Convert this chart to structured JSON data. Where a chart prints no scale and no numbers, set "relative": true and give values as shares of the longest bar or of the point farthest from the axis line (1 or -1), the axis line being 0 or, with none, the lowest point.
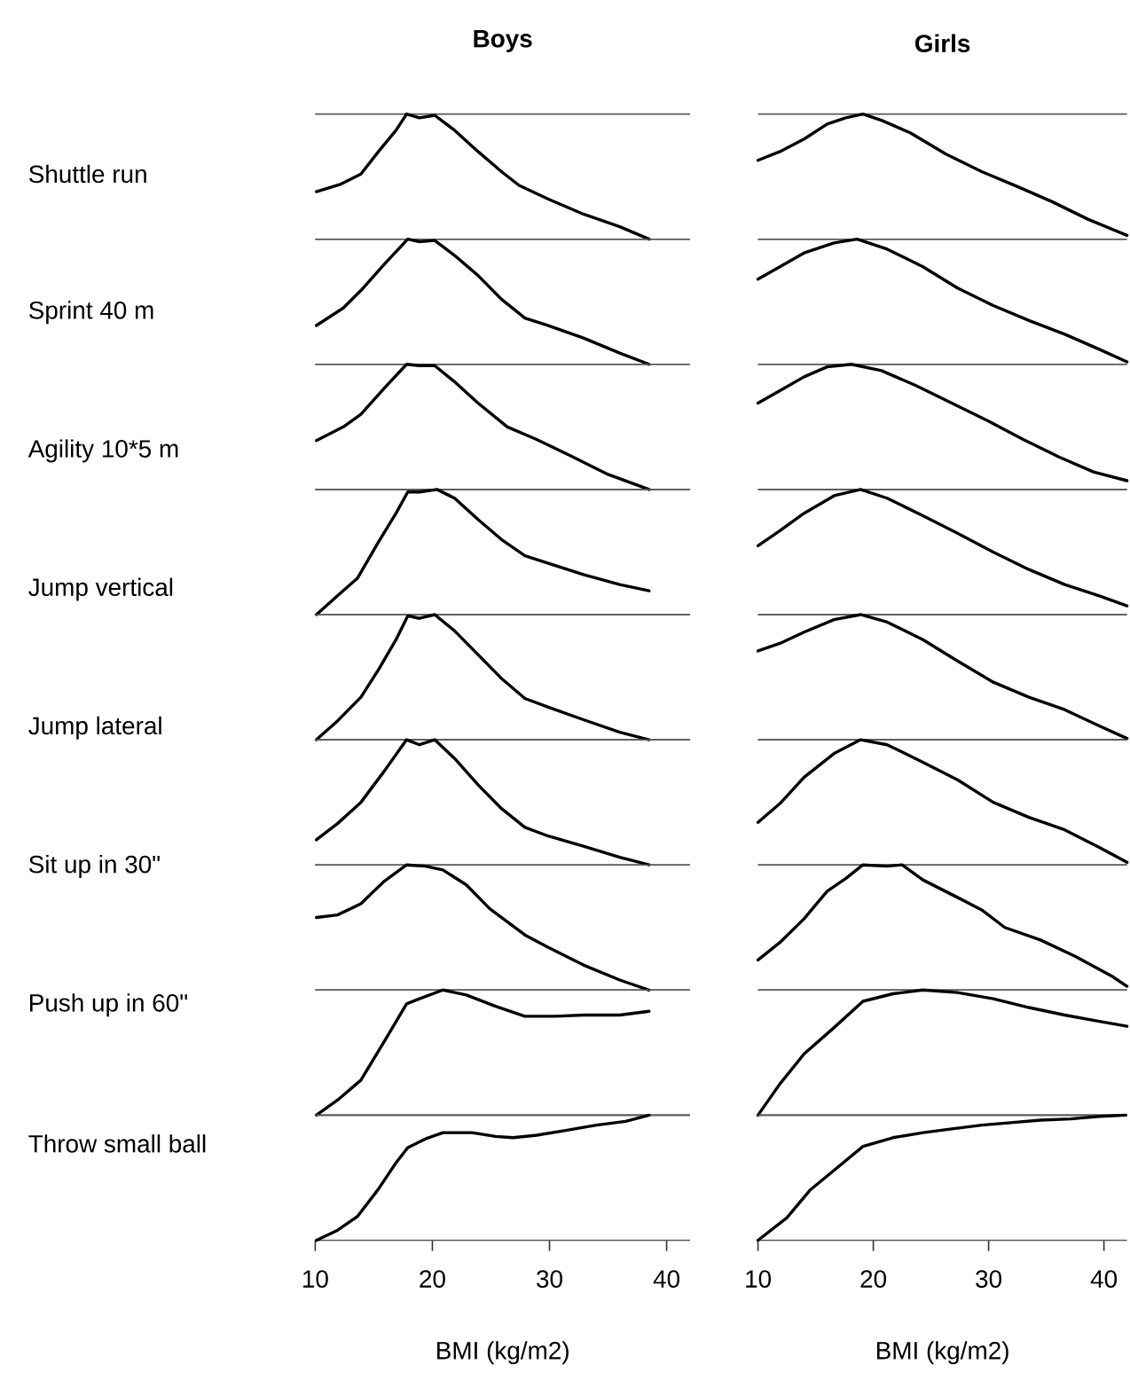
{
  "chart_data": [
    {
      "type": "line",
      "title": "Boys",
      "ylabel": "Shuttle run",
      "relative": true,
      "color": "#000000",
      "tick_labels": false,
      "xlim": [
        10,
        42
      ],
      "x": [
        10.1,
        12.2,
        13.9,
        15.4,
        16.9,
        17.8,
        18.9,
        20.2,
        21.9,
        23.9,
        25.9,
        27.4,
        29.9,
        32.9,
        36,
        38.5
      ],
      "values": [
        0.38,
        0.44,
        0.52,
        0.7,
        0.87,
        1.0,
        0.97,
        0.99,
        0.87,
        0.7,
        0.54,
        0.43,
        0.32,
        0.2,
        0.1,
        0.0
      ]
    },
    {
      "type": "line",
      "title": "Girls",
      "relative": true,
      "color": "#000000",
      "tick_labels": false,
      "xlim": [
        10,
        42
      ],
      "x": [
        10,
        11.9,
        14,
        16,
        17.6,
        19.1,
        20.7,
        23.2,
        26.3,
        29.4,
        32.5,
        35.5,
        38.6,
        42
      ],
      "values": [
        0.63,
        0.7,
        0.8,
        0.92,
        0.97,
        1.0,
        0.95,
        0.85,
        0.68,
        0.54,
        0.42,
        0.3,
        0.16,
        0.03
      ]
    },
    {
      "type": "line",
      "ylabel": "Sprint 40 m",
      "relative": true,
      "color": "#000000",
      "tick_labels": false,
      "xlim": [
        10,
        42
      ],
      "x": [
        10.1,
        12.4,
        13.9,
        15.9,
        17.9,
        18.9,
        20.2,
        21.9,
        23.9,
        25.9,
        27.9,
        29.9,
        32.9,
        36,
        38.5
      ],
      "values": [
        0.31,
        0.45,
        0.59,
        0.8,
        1.0,
        0.98,
        0.99,
        0.87,
        0.71,
        0.52,
        0.37,
        0.31,
        0.21,
        0.09,
        0.0
      ]
    },
    {
      "type": "line",
      "relative": true,
      "color": "#000000",
      "tick_labels": false,
      "xlim": [
        10,
        42
      ],
      "x": [
        10,
        11.9,
        14,
        16.6,
        18.6,
        21.2,
        24.3,
        27.3,
        30.4,
        33.5,
        36.6,
        39.6,
        42
      ],
      "values": [
        0.68,
        0.78,
        0.89,
        0.97,
        1.0,
        0.92,
        0.78,
        0.61,
        0.47,
        0.35,
        0.24,
        0.12,
        0.02
      ]
    },
    {
      "type": "line",
      "ylabel": "Agility 10*5 m",
      "relative": true,
      "color": "#000000",
      "tick_labels": false,
      "xlim": [
        10,
        42
      ],
      "x": [
        10.1,
        12.4,
        13.9,
        15.9,
        17.8,
        18.9,
        20.2,
        21.9,
        23.9,
        26.4,
        28.9,
        32,
        35,
        38.5
      ],
      "values": [
        0.39,
        0.5,
        0.6,
        0.81,
        1.0,
        0.99,
        0.99,
        0.86,
        0.69,
        0.5,
        0.4,
        0.26,
        0.12,
        0.0
      ]
    },
    {
      "type": "line",
      "relative": true,
      "color": "#000000",
      "tick_labels": false,
      "xlim": [
        10,
        42
      ],
      "x": [
        10,
        11.9,
        14,
        16,
        18.1,
        20.7,
        23.7,
        26.8,
        29.9,
        33,
        36.1,
        39.1,
        42
      ],
      "values": [
        0.69,
        0.79,
        0.9,
        0.98,
        1.0,
        0.95,
        0.83,
        0.69,
        0.55,
        0.4,
        0.26,
        0.14,
        0.07
      ]
    },
    {
      "type": "line",
      "ylabel": "Jump vertical",
      "relative": true,
      "color": "#000000",
      "tick_labels": false,
      "xlim": [
        10,
        42
      ],
      "x": [
        10.1,
        11.9,
        13.6,
        15.4,
        16.9,
        17.9,
        18.9,
        20.4,
        21.9,
        23.9,
        25.9,
        27.9,
        29.9,
        32.9,
        36,
        38.5
      ],
      "values": [
        0.0,
        0.15,
        0.29,
        0.58,
        0.81,
        0.98,
        0.98,
        1.0,
        0.93,
        0.76,
        0.6,
        0.47,
        0.41,
        0.32,
        0.24,
        0.19
      ]
    },
    {
      "type": "line",
      "relative": true,
      "color": "#000000",
      "tick_labels": false,
      "xlim": [
        10,
        42
      ],
      "x": [
        10,
        11.9,
        14,
        16.6,
        18.9,
        21.2,
        24.3,
        27.3,
        30.4,
        33.5,
        36.6,
        39.6,
        42
      ],
      "values": [
        0.55,
        0.67,
        0.81,
        0.95,
        1.0,
        0.93,
        0.79,
        0.65,
        0.5,
        0.36,
        0.24,
        0.15,
        0.07
      ]
    },
    {
      "type": "line",
      "ylabel": "Jump lateral",
      "relative": true,
      "color": "#000000",
      "tick_labels": false,
      "xlim": [
        10,
        42
      ],
      "x": [
        10.1,
        11.9,
        13.9,
        15.4,
        16.9,
        17.9,
        18.9,
        20.2,
        21.9,
        23.9,
        25.9,
        27.9,
        29.9,
        32.9,
        36,
        38.5
      ],
      "values": [
        0.0,
        0.15,
        0.34,
        0.56,
        0.8,
        0.99,
        0.97,
        1.0,
        0.87,
        0.68,
        0.49,
        0.33,
        0.26,
        0.16,
        0.06,
        0.0
      ]
    },
    {
      "type": "line",
      "relative": true,
      "color": "#000000",
      "tick_labels": false,
      "xlim": [
        10,
        42
      ],
      "x": [
        10,
        11.9,
        14,
        16.6,
        18.9,
        21.2,
        24.3,
        27.3,
        30.4,
        33.5,
        36.6,
        39.6,
        42
      ],
      "values": [
        0.71,
        0.77,
        0.86,
        0.96,
        1.0,
        0.94,
        0.8,
        0.63,
        0.46,
        0.34,
        0.24,
        0.11,
        0.01
      ]
    },
    {
      "type": "line",
      "ylabel": "Sit up in 30\"",
      "relative": true,
      "color": "#000000",
      "tick_labels": false,
      "xlim": [
        10,
        42
      ],
      "x": [
        10.1,
        11.9,
        13.9,
        15.9,
        17.8,
        18.9,
        20.2,
        21.9,
        23.9,
        25.9,
        27.9,
        29.9,
        32.9,
        36,
        38.5
      ],
      "values": [
        0.2,
        0.33,
        0.5,
        0.75,
        1.0,
        0.96,
        1.0,
        0.85,
        0.64,
        0.45,
        0.3,
        0.23,
        0.15,
        0.06,
        0.0
      ]
    },
    {
      "type": "line",
      "relative": true,
      "color": "#000000",
      "tick_labels": false,
      "xlim": [
        10,
        42
      ],
      "x": [
        10,
        11.9,
        14,
        16.6,
        18.9,
        21.2,
        24.3,
        27.3,
        30.4,
        33.5,
        36.6,
        39.6,
        42
      ],
      "values": [
        0.34,
        0.49,
        0.7,
        0.89,
        1.0,
        0.96,
        0.82,
        0.68,
        0.5,
        0.38,
        0.28,
        0.14,
        0.02
      ]
    },
    {
      "type": "line",
      "ylabel": "Push up in 60\"",
      "relative": true,
      "color": "#000000",
      "tick_labels": false,
      "xlim": [
        10,
        42
      ],
      "x": [
        10.1,
        11.9,
        13.9,
        15.9,
        17.8,
        19.4,
        20.9,
        22.9,
        24.9,
        27.9,
        29.9,
        32.9,
        36,
        38.5
      ],
      "values": [
        0.58,
        0.6,
        0.69,
        0.87,
        1.0,
        0.99,
        0.96,
        0.84,
        0.65,
        0.44,
        0.34,
        0.2,
        0.08,
        0.0
      ]
    },
    {
      "type": "line",
      "relative": true,
      "color": "#000000",
      "tick_labels": false,
      "xlim": [
        10,
        42
      ],
      "x": [
        10,
        11.9,
        14,
        16,
        17.6,
        19.1,
        21.2,
        22.5,
        24.3,
        27.3,
        29.4,
        31.4,
        34.5,
        37.5,
        40.7,
        42
      ],
      "values": [
        0.24,
        0.38,
        0.57,
        0.79,
        0.89,
        1.0,
        0.99,
        1.0,
        0.88,
        0.74,
        0.64,
        0.5,
        0.4,
        0.27,
        0.11,
        0.03
      ]
    },
    {
      "type": "line",
      "ylabel": "Throw small ball",
      "relative": true,
      "color": "#000000",
      "tick_labels": false,
      "xlim": [
        10,
        42
      ],
      "x": [
        10.1,
        11.9,
        13.9,
        15.9,
        17.8,
        18.9,
        20.9,
        22.9,
        25.4,
        27.9,
        30.5,
        32.9,
        36,
        38.5
      ],
      "values": [
        0.0,
        0.12,
        0.28,
        0.59,
        0.89,
        0.93,
        1.0,
        0.96,
        0.87,
        0.79,
        0.79,
        0.8,
        0.8,
        0.83
      ]
    },
    {
      "type": "line",
      "relative": true,
      "color": "#000000",
      "tick_labels": false,
      "xlim": [
        10,
        42
      ],
      "x": [
        10,
        11.9,
        14,
        16.6,
        19.1,
        21.7,
        24.3,
        27.3,
        30.4,
        33.5,
        36.6,
        39.6,
        42
      ],
      "values": [
        0.0,
        0.25,
        0.49,
        0.7,
        0.91,
        0.97,
        1.0,
        0.98,
        0.93,
        0.86,
        0.8,
        0.75,
        0.71
      ]
    },
    {
      "type": "line",
      "xlabel": "BMI (kg/m2)",
      "relative": true,
      "color": "#000000",
      "tick_labels": "x",
      "xlim": [
        10,
        42
      ],
      "xticks": [
        10,
        20,
        30,
        40
      ],
      "x": [
        10.1,
        11.9,
        13.6,
        15.4,
        16.9,
        17.9,
        19.4,
        20.9,
        23.4,
        25.4,
        26.9,
        28.9,
        31.5,
        34,
        36.5,
        38.5
      ],
      "values": [
        0.0,
        0.08,
        0.19,
        0.41,
        0.62,
        0.74,
        0.81,
        0.86,
        0.86,
        0.83,
        0.82,
        0.84,
        0.88,
        0.92,
        0.95,
        1.0
      ]
    },
    {
      "type": "line",
      "xlabel": "BMI (kg/m2)",
      "relative": true,
      "color": "#000000",
      "tick_labels": "x",
      "xlim": [
        10,
        42
      ],
      "xticks": [
        10,
        20,
        30,
        40
      ],
      "x": [
        10,
        12.5,
        14.5,
        16.6,
        19.1,
        21.7,
        24.3,
        26.8,
        29.4,
        31.9,
        34.5,
        37.1,
        39.6,
        41.9
      ],
      "values": [
        0.0,
        0.18,
        0.4,
        0.56,
        0.75,
        0.82,
        0.86,
        0.89,
        0.92,
        0.94,
        0.96,
        0.97,
        0.99,
        1.0
      ]
    }
  ]
}
